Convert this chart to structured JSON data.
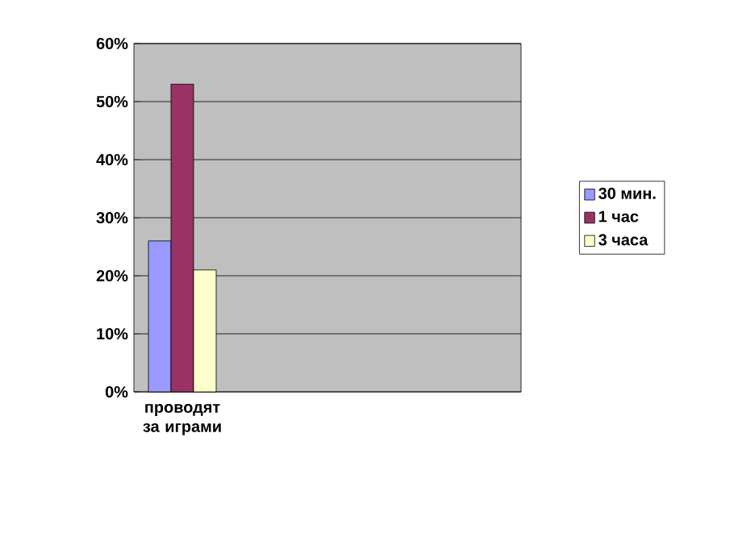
{
  "chart_data": {
    "type": "bar",
    "categories": [
      "проводят за играми",
      null,
      null,
      null
    ],
    "series": [
      {
        "name": "30 мин.",
        "color": "#9999ff",
        "values": [
          26,
          null,
          null,
          null
        ]
      },
      {
        "name": "1 час",
        "color": "#993366",
        "values": [
          53,
          null,
          null,
          null
        ]
      },
      {
        "name": "3 часа",
        "color": "#ffffcc",
        "values": [
          21,
          null,
          null,
          null
        ]
      }
    ],
    "ylim": [
      0,
      60
    ],
    "yticks": [
      {
        "value": 0,
        "label": "0%"
      },
      {
        "value": 10,
        "label": "10%"
      },
      {
        "value": 20,
        "label": "20%"
      },
      {
        "value": 30,
        "label": "30%"
      },
      {
        "value": 40,
        "label": "40%"
      },
      {
        "value": 50,
        "label": "50%"
      },
      {
        "value": 60,
        "label": "60%"
      }
    ],
    "grid": "y",
    "legend": "right"
  }
}
